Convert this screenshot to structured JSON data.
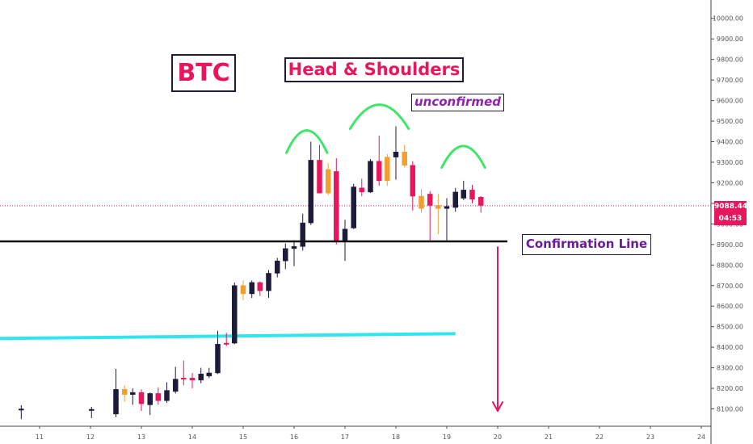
{
  "annotations": {
    "btc_label": "BTC",
    "pattern_label": "Head & Shoulders",
    "status_label": "unconfirmed",
    "confirmation_label": "Confirmation Line"
  },
  "price_tag": {
    "price": "9088.44",
    "countdown": "04:53"
  },
  "colors": {
    "bull_candle": "#1c1b3a",
    "bear_candle": "#e8175d",
    "orange_candle": "#f0a030",
    "shoulder_arc": "#3ee66a",
    "support_line": "#2fe6f0",
    "confirmation_line": "#111111",
    "arrow": "#e8175d",
    "current_price_line": "#e8175d"
  },
  "chart_data": {
    "type": "candlestick",
    "instrument": "BTC",
    "x_axis": {
      "ticks": [
        "11",
        "12",
        "13",
        "14",
        "15",
        "16",
        "17",
        "18",
        "19",
        "20",
        "21",
        "22",
        "23",
        "24"
      ]
    },
    "y_axis": {
      "ticks": [
        "8100.00",
        "8200.00",
        "8300.00",
        "8400.00",
        "8500.00",
        "8600.00",
        "8700.00",
        "8800.00",
        "8900.00",
        "9000.00",
        "9100.00",
        "9200.00",
        "9300.00",
        "9400.00",
        "9500.00",
        "9600.00",
        "9700.00",
        "9800.00",
        "9900.00",
        "10000.00"
      ],
      "range": [
        8055,
        10050
      ],
      "position": "right"
    },
    "candles": [
      {
        "t": 10.64,
        "o": 8100,
        "h": 8118,
        "l": 8050,
        "c": 8098,
        "color": "bull"
      },
      {
        "t": 12.02,
        "o": 8095,
        "h": 8110,
        "l": 8055,
        "c": 8098,
        "color": "bull"
      },
      {
        "t": 12.5,
        "o": 8075,
        "h": 8295,
        "l": 8060,
        "c": 8195,
        "color": "bull"
      },
      {
        "t": 12.67,
        "o": 8195,
        "h": 8215,
        "l": 8135,
        "c": 8170,
        "color": "orange"
      },
      {
        "t": 12.83,
        "o": 8170,
        "h": 8200,
        "l": 8120,
        "c": 8180,
        "color": "bull"
      },
      {
        "t": 13.0,
        "o": 8180,
        "h": 8195,
        "l": 8090,
        "c": 8125,
        "color": "bear"
      },
      {
        "t": 13.17,
        "o": 8120,
        "h": 8180,
        "l": 8070,
        "c": 8175,
        "color": "bull"
      },
      {
        "t": 13.33,
        "o": 8175,
        "h": 8205,
        "l": 8120,
        "c": 8140,
        "color": "bear"
      },
      {
        "t": 13.5,
        "o": 8140,
        "h": 8230,
        "l": 8130,
        "c": 8190,
        "color": "bull"
      },
      {
        "t": 13.67,
        "o": 8185,
        "h": 8305,
        "l": 8175,
        "c": 8245,
        "color": "bull"
      },
      {
        "t": 13.83,
        "o": 8245,
        "h": 8335,
        "l": 8215,
        "c": 8250,
        "color": "bear"
      },
      {
        "t": 14.0,
        "o": 8250,
        "h": 8275,
        "l": 8200,
        "c": 8240,
        "color": "bear"
      },
      {
        "t": 14.17,
        "o": 8240,
        "h": 8300,
        "l": 8225,
        "c": 8270,
        "color": "bull"
      },
      {
        "t": 14.33,
        "o": 8260,
        "h": 8300,
        "l": 8250,
        "c": 8275,
        "color": "bull"
      },
      {
        "t": 14.5,
        "o": 8275,
        "h": 8480,
        "l": 8270,
        "c": 8415,
        "color": "bull"
      },
      {
        "t": 14.67,
        "o": 8415,
        "h": 8470,
        "l": 8405,
        "c": 8420,
        "color": "bear"
      },
      {
        "t": 14.83,
        "o": 8420,
        "h": 8715,
        "l": 8415,
        "c": 8700,
        "color": "bull"
      },
      {
        "t": 15.0,
        "o": 8700,
        "h": 8725,
        "l": 8630,
        "c": 8660,
        "color": "orange"
      },
      {
        "t": 15.17,
        "o": 8660,
        "h": 8725,
        "l": 8640,
        "c": 8715,
        "color": "bull"
      },
      {
        "t": 15.33,
        "o": 8715,
        "h": 8720,
        "l": 8650,
        "c": 8675,
        "color": "bear"
      },
      {
        "t": 15.5,
        "o": 8675,
        "h": 8775,
        "l": 8640,
        "c": 8760,
        "color": "bull"
      },
      {
        "t": 15.67,
        "o": 8760,
        "h": 8835,
        "l": 8740,
        "c": 8820,
        "color": "bull"
      },
      {
        "t": 15.83,
        "o": 8820,
        "h": 8905,
        "l": 8780,
        "c": 8880,
        "color": "bull"
      },
      {
        "t": 16.0,
        "o": 8880,
        "h": 8920,
        "l": 8795,
        "c": 8890,
        "color": "bull"
      },
      {
        "t": 16.17,
        "o": 8890,
        "h": 9050,
        "l": 8870,
        "c": 9005,
        "color": "bull"
      },
      {
        "t": 16.33,
        "o": 9005,
        "h": 9400,
        "l": 8995,
        "c": 9310,
        "color": "bull"
      },
      {
        "t": 16.5,
        "o": 9310,
        "h": 9385,
        "l": 9150,
        "c": 9150,
        "color": "bear"
      },
      {
        "t": 16.67,
        "o": 9150,
        "h": 9295,
        "l": 9140,
        "c": 9265,
        "color": "orange"
      },
      {
        "t": 16.83,
        "o": 9255,
        "h": 9320,
        "l": 8900,
        "c": 8915,
        "color": "bear"
      },
      {
        "t": 17.0,
        "o": 8915,
        "h": 9020,
        "l": 8820,
        "c": 8975,
        "color": "bull"
      },
      {
        "t": 17.17,
        "o": 8980,
        "h": 9195,
        "l": 8975,
        "c": 9180,
        "color": "bull"
      },
      {
        "t": 17.33,
        "o": 9175,
        "h": 9220,
        "l": 9135,
        "c": 9155,
        "color": "bear"
      },
      {
        "t": 17.5,
        "o": 9155,
        "h": 9315,
        "l": 9150,
        "c": 9305,
        "color": "bull"
      },
      {
        "t": 17.67,
        "o": 9305,
        "h": 9430,
        "l": 9185,
        "c": 9210,
        "color": "bear"
      },
      {
        "t": 17.83,
        "o": 9210,
        "h": 9340,
        "l": 9185,
        "c": 9325,
        "color": "orange"
      },
      {
        "t": 18.0,
        "o": 9325,
        "h": 9475,
        "l": 9215,
        "c": 9350,
        "color": "bull"
      },
      {
        "t": 18.17,
        "o": 9350,
        "h": 9385,
        "l": 9275,
        "c": 9285,
        "color": "orange"
      },
      {
        "t": 18.33,
        "o": 9285,
        "h": 9305,
        "l": 9065,
        "c": 9135,
        "color": "bear"
      },
      {
        "t": 18.5,
        "o": 9135,
        "h": 9170,
        "l": 9055,
        "c": 9075,
        "color": "orange"
      },
      {
        "t": 18.67,
        "o": 9145,
        "h": 9160,
        "l": 8910,
        "c": 9090,
        "color": "bear"
      },
      {
        "t": 18.83,
        "o": 9090,
        "h": 9145,
        "l": 8950,
        "c": 9075,
        "color": "orange"
      },
      {
        "t": 19.0,
        "o": 9075,
        "h": 9125,
        "l": 8920,
        "c": 9085,
        "color": "bull"
      },
      {
        "t": 19.17,
        "o": 9080,
        "h": 9175,
        "l": 9060,
        "c": 9155,
        "color": "bull"
      },
      {
        "t": 19.33,
        "o": 9125,
        "h": 9210,
        "l": 9115,
        "c": 9165,
        "color": "bull"
      },
      {
        "t": 19.5,
        "o": 9165,
        "h": 9190,
        "l": 9100,
        "c": 9120,
        "color": "bear"
      },
      {
        "t": 19.67,
        "o": 9130,
        "h": 9135,
        "l": 9055,
        "c": 9090,
        "color": "bear"
      }
    ],
    "lines": {
      "confirmation": {
        "t1": 10.0,
        "t2": 20.19,
        "price": 8915
      },
      "support": {
        "t1": 10.0,
        "p1": 8442,
        "t2": 19.17,
        "p2": 8466
      },
      "current_price": 9088.44
    },
    "shoulder_arcs": [
      {
        "t1": 15.85,
        "t2": 16.65,
        "base": 9346,
        "top": 9455
      },
      {
        "t1": 17.1,
        "t2": 18.25,
        "base": 9463,
        "top": 9580
      },
      {
        "t1": 18.9,
        "t2": 19.75,
        "base": 9274,
        "top": 9379
      }
    ],
    "target_arrow": {
      "t": 20.0,
      "from": 8890,
      "to": 8090
    }
  }
}
